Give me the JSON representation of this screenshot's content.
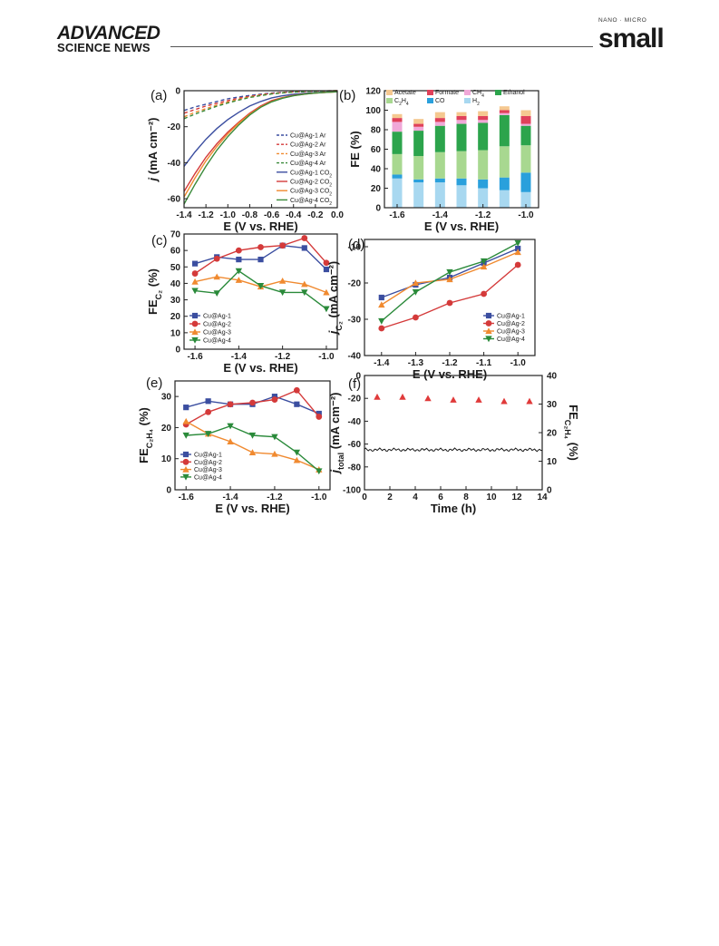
{
  "header": {
    "journal_left_line1": "ADVANCED",
    "journal_left_line2": "SCIENCE NEWS",
    "journal_right_small": "NANO · MICRO",
    "journal_right_big": "small"
  },
  "chart_data": [
    {
      "panel": "(a)",
      "type": "line",
      "xlabel": "E (V vs. RHE)",
      "ylabel": "j (mA cm⁻²)",
      "xlim": [
        -1.4,
        0.0
      ],
      "ylim": [
        -65,
        0
      ],
      "xticks": [
        "-1.4",
        "-1.2",
        "-1.0",
        "-0.8",
        "-0.6",
        "-0.4",
        "-0.2",
        "0.0"
      ],
      "yticks": [
        "0",
        "-20",
        "-40",
        "-60"
      ],
      "x": [
        -1.4,
        -1.3,
        -1.2,
        -1.1,
        -1.0,
        -0.9,
        -0.8,
        -0.7,
        -0.6,
        -0.5,
        -0.4,
        -0.3,
        -0.2,
        -0.1,
        0.0
      ],
      "series": [
        {
          "name": "Cu@Ag-1 Ar",
          "color": "#3b4ea0",
          "dashed": true,
          "values": [
            -11,
            -9,
            -7.5,
            -6,
            -4.5,
            -3.5,
            -2.6,
            -1.9,
            -1.3,
            -0.9,
            -0.6,
            -0.4,
            -0.2,
            -0.1,
            0
          ]
        },
        {
          "name": "Cu@Ag-2 Ar",
          "color": "#d43a3a",
          "dashed": true,
          "values": [
            -12.5,
            -10.5,
            -8.5,
            -7,
            -5.5,
            -4.2,
            -3.1,
            -2.2,
            -1.5,
            -1,
            -0.7,
            -0.4,
            -0.2,
            -0.1,
            0
          ]
        },
        {
          "name": "Cu@Ag-3 Ar",
          "color": "#f08a30",
          "dashed": true,
          "values": [
            -14.5,
            -12,
            -10,
            -8,
            -6.3,
            -4.8,
            -3.5,
            -2.5,
            -1.7,
            -1.1,
            -0.7,
            -0.4,
            -0.2,
            -0.1,
            0
          ]
        },
        {
          "name": "Cu@Ag-4 Ar",
          "color": "#3a8a3a",
          "dashed": true,
          "values": [
            -15.5,
            -13,
            -10.8,
            -8.6,
            -6.8,
            -5.2,
            -3.8,
            -2.7,
            -1.8,
            -1.2,
            -0.8,
            -0.5,
            -0.3,
            -0.1,
            0
          ]
        },
        {
          "name": "Cu@Ag-1 CO₂",
          "color": "#3b4ea0",
          "dashed": false,
          "values": [
            -42,
            -34,
            -27,
            -21,
            -16,
            -12,
            -8.5,
            -6,
            -4,
            -2.8,
            -2,
            -1.5,
            -1.1,
            -0.8,
            -0.5
          ]
        },
        {
          "name": "Cu@Ag-2 CO₂",
          "color": "#d43a3a",
          "dashed": false,
          "values": [
            -56,
            -46,
            -37,
            -29.5,
            -23,
            -17.5,
            -12.5,
            -8.5,
            -5.5,
            -3.8,
            -2.6,
            -1.8,
            -1.3,
            -0.9,
            -0.6
          ]
        },
        {
          "name": "Cu@Ag-3 CO₂",
          "color": "#f08a30",
          "dashed": false,
          "values": [
            -59,
            -48.5,
            -39,
            -31,
            -24,
            -18,
            -13,
            -9,
            -6,
            -4,
            -2.7,
            -1.9,
            -1.3,
            -0.9,
            -0.6
          ]
        },
        {
          "name": "Cu@Ag-4 CO₂",
          "color": "#3a8a3a",
          "dashed": false,
          "values": [
            -63,
            -52,
            -42,
            -33,
            -25.5,
            -19,
            -13.5,
            -9.2,
            -6.2,
            -4.2,
            -2.8,
            -1.9,
            -1.3,
            -0.9,
            -0.6
          ]
        }
      ]
    },
    {
      "panel": "(b)",
      "type": "bar",
      "stacked": true,
      "xlabel": "E (V vs. RHE)",
      "ylabel": "FE (%)",
      "ylim": [
        0,
        120
      ],
      "xlim": [
        -1.6,
        -1.0
      ],
      "xticks": [
        "-1.6",
        "-1.4",
        "-1.2",
        "-1.0"
      ],
      "yticks": [
        "0",
        "20",
        "40",
        "60",
        "80",
        "100",
        "120"
      ],
      "categories": [
        -1.6,
        -1.5,
        -1.4,
        -1.3,
        -1.2,
        -1.1,
        -1.0
      ],
      "series": [
        {
          "name": "H₂",
          "color": "#a8d8f0",
          "values": [
            30,
            26,
            26,
            23,
            20,
            18,
            16
          ]
        },
        {
          "name": "CO",
          "color": "#2aa0dc",
          "values": [
            4,
            3,
            4,
            7,
            9,
            13,
            20
          ]
        },
        {
          "name": "C₂H₄",
          "color": "#a8d890",
          "values": [
            21,
            24,
            27,
            28,
            30,
            32,
            28
          ]
        },
        {
          "name": "Ethanol",
          "color": "#2ca44c",
          "values": [
            23,
            26,
            27,
            28,
            28,
            32,
            20
          ]
        },
        {
          "name": "CH₄",
          "color": "#f0a8d8",
          "values": [
            10,
            4,
            4,
            4,
            3,
            2,
            2
          ]
        },
        {
          "name": "Formate",
          "color": "#e0405a",
          "values": [
            4,
            3,
            4,
            4,
            4,
            3,
            8
          ]
        },
        {
          "name": "Acetate",
          "color": "#f5c890",
          "values": [
            4,
            5,
            6,
            4,
            5,
            4,
            6
          ]
        }
      ],
      "legend_order": [
        "Acetate",
        "Formate",
        "CH₄",
        "Ethanol",
        "C₂H₄",
        "CO",
        "H₂"
      ]
    },
    {
      "panel": "(c)",
      "type": "line",
      "xlabel": "E (V vs. RHE)",
      "ylabel": "FE_C₂ (%)",
      "xlim": [
        -1.65,
        -0.95
      ],
      "ylim": [
        0,
        70
      ],
      "xticks": [
        "-1.6",
        "-1.4",
        "-1.2",
        "-1.0"
      ],
      "yticks": [
        "0",
        "10",
        "20",
        "30",
        "40",
        "50",
        "60",
        "70"
      ],
      "x": [
        -1.6,
        -1.5,
        -1.4,
        -1.3,
        -1.2,
        -1.1,
        -1.0
      ],
      "series": [
        {
          "name": "Cu@Ag-1",
          "color": "#3b4ea0",
          "marker": "square",
          "values": [
            52,
            56,
            54.5,
            54.5,
            63,
            61.5,
            48.5
          ]
        },
        {
          "name": "Cu@Ag-2",
          "color": "#d43a3a",
          "marker": "circle",
          "values": [
            46,
            55,
            60,
            62,
            63,
            67.5,
            52.5
          ]
        },
        {
          "name": "Cu@Ag-3",
          "color": "#f08a30",
          "marker": "triangle-up",
          "values": [
            41,
            44,
            42,
            38,
            41.5,
            39.5,
            34.5
          ]
        },
        {
          "name": "Cu@Ag-4",
          "color": "#2a8a3a",
          "marker": "triangle-down",
          "values": [
            35.5,
            34,
            47.5,
            38.5,
            34.5,
            34.5,
            24.5
          ]
        }
      ]
    },
    {
      "panel": "(d)",
      "type": "line",
      "xlabel": "E (V vs. RHE)",
      "ylabel": "j_C₂ (mA cm⁻²)",
      "xlim": [
        -1.45,
        -0.95
      ],
      "ylim": [
        -40,
        -8
      ],
      "xticks": [
        "-1.4",
        "-1.3",
        "-1.2",
        "-1.1",
        "-1.0"
      ],
      "yticks": [
        "-10",
        "-20",
        "-30",
        "-40"
      ],
      "x": [
        -1.4,
        -1.3,
        -1.2,
        -1.1,
        -1.0
      ],
      "series": [
        {
          "name": "Cu@Ag-1",
          "color": "#3b4ea0",
          "marker": "square",
          "values": [
            -24,
            -20.5,
            -18.5,
            -14.5,
            -10.5
          ]
        },
        {
          "name": "Cu@Ag-2",
          "color": "#d43a3a",
          "marker": "circle",
          "values": [
            -32.5,
            -29.5,
            -25.5,
            -23,
            -15
          ]
        },
        {
          "name": "Cu@Ag-3",
          "color": "#f08a30",
          "marker": "triangle-up",
          "values": [
            -26,
            -20,
            -19,
            -15.5,
            -11.5
          ]
        },
        {
          "name": "Cu@Ag-4",
          "color": "#2a8a3a",
          "marker": "triangle-down",
          "values": [
            -30.5,
            -22.5,
            -17,
            -14,
            -9
          ]
        }
      ]
    },
    {
      "panel": "(e)",
      "type": "line",
      "xlabel": "E (V vs. RHE)",
      "ylabel": "FE_C₂H₄ (%)",
      "xlim": [
        -1.65,
        -0.95
      ],
      "ylim": [
        0,
        35
      ],
      "xticks": [
        "-1.6",
        "-1.4",
        "-1.2",
        "-1.0"
      ],
      "yticks": [
        "0",
        "10",
        "20",
        "30"
      ],
      "x": [
        -1.6,
        -1.5,
        -1.4,
        -1.3,
        -1.2,
        -1.1,
        -1.0
      ],
      "series": [
        {
          "name": "Cu@Ag-1",
          "color": "#3b4ea0",
          "marker": "square",
          "values": [
            26.5,
            28.5,
            27.5,
            27.5,
            30,
            27.5,
            24.5
          ]
        },
        {
          "name": "Cu@Ag-2",
          "color": "#d43a3a",
          "marker": "circle",
          "values": [
            21,
            25,
            27.5,
            28,
            29,
            32,
            23.5
          ]
        },
        {
          "name": "Cu@Ag-3",
          "color": "#f08a30",
          "marker": "triangle-up",
          "values": [
            22,
            18,
            15.5,
            12,
            11.5,
            9.5,
            6.5
          ]
        },
        {
          "name": "Cu@Ag-4",
          "color": "#2a8a3a",
          "marker": "triangle-down",
          "values": [
            17.5,
            18,
            20.5,
            17.5,
            17,
            12,
            6
          ]
        }
      ]
    },
    {
      "panel": "(f)",
      "type": "line",
      "xlabel": "Time (h)",
      "ylabel": "j_total (mA cm⁻²)",
      "ylabel_right": "FE_C₂H₄ (%)",
      "xlim": [
        0,
        14
      ],
      "ylim": [
        -100,
        0
      ],
      "ylim_right": [
        0,
        40
      ],
      "xticks": [
        "0",
        "2",
        "4",
        "6",
        "8",
        "10",
        "12",
        "14"
      ],
      "yticks": [
        "0",
        "-20",
        "-40",
        "-60",
        "-80",
        "-100"
      ],
      "yticks_right": [
        "0",
        "10",
        "20",
        "30",
        "40"
      ],
      "current": {
        "color": "#1a1a1a",
        "value": -65
      },
      "fe_points": {
        "color": "#e03a3a",
        "marker": "triangle-up",
        "x": [
          1,
          3,
          5,
          7,
          9,
          11,
          13
        ],
        "values": [
          32.5,
          32.5,
          32,
          31.5,
          31.5,
          31,
          31
        ]
      }
    }
  ]
}
